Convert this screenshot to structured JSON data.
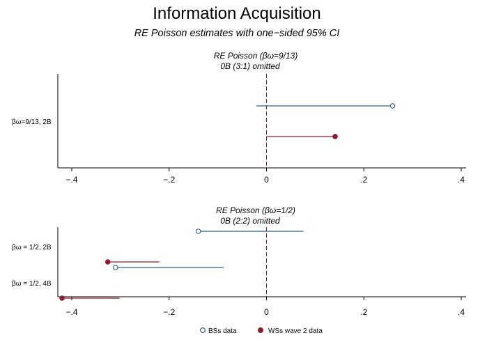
{
  "title": "Information Acquisition",
  "subtitle": "RE Poisson estimates with one−sided 95% CI",
  "legend": {
    "items": [
      "BSs data",
      "WSs wave 2 data"
    ],
    "placement": "bottom"
  },
  "colors": {
    "bs": "#2e5f93",
    "ws": "#8b1c2b",
    "refline": "#8b1c2b",
    "axis": "#000000"
  },
  "chart_data": [
    {
      "type": "scatter",
      "title": "RE Poisson (βω=9/13)",
      "subtitle": "0B (3:1) omitted",
      "xlim": [
        -0.42,
        0.4
      ],
      "xticks": [
        -0.4,
        -0.2,
        0,
        0.2,
        0.4
      ],
      "xtick_labels": [
        "−.4",
        "−.2",
        "0",
        ".2",
        ".4"
      ],
      "refline_x": 0,
      "categories": [
        "βω=9/13, 2B"
      ],
      "series": [
        {
          "name": "BSs data",
          "estimate": [
            0.259
          ],
          "ci_low": [
            -0.021
          ],
          "ci_high": [
            0.259
          ],
          "marker": "hollow-circle"
        },
        {
          "name": "WSs wave 2 data",
          "estimate": [
            0.141
          ],
          "ci_low": [
            0.0
          ],
          "ci_high": [
            0.141
          ],
          "marker": "filled-circle"
        }
      ]
    },
    {
      "type": "scatter",
      "title": "RE Poisson (βω=1/2)",
      "subtitle": "0B (2:2) omitted",
      "xlim": [
        -0.42,
        0.4
      ],
      "xticks": [
        -0.4,
        -0.2,
        0,
        0.2,
        0.4
      ],
      "xtick_labels": [
        "−.4",
        "−.2",
        "0",
        ".2",
        ".4"
      ],
      "refline_x": 0,
      "categories": [
        "βω = 1/2, 2B",
        "βω = 1/2, 4B"
      ],
      "series": [
        {
          "name": "BSs data",
          "estimate": [
            -0.14,
            -0.31
          ],
          "ci_low": [
            -0.14,
            -0.31
          ],
          "ci_high": [
            0.076,
            -0.088
          ],
          "marker": "hollow-circle"
        },
        {
          "name": "WSs wave 2 data",
          "estimate": [
            -0.326,
            -0.42
          ],
          "ci_low": [
            -0.326,
            -0.42
          ],
          "ci_high": [
            -0.22,
            -0.302
          ],
          "marker": "filled-circle"
        }
      ]
    }
  ]
}
